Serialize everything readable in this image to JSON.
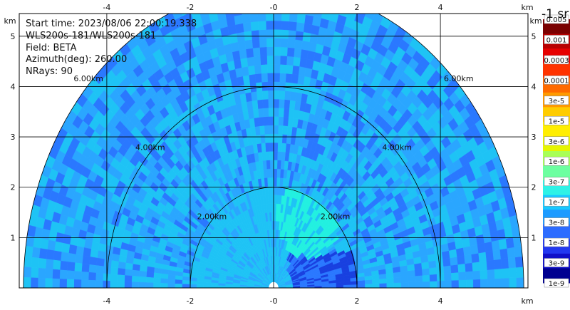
{
  "info": {
    "start_time": "Start time: 2023/08/06 22:00:19.338",
    "station": "WLS200s-181/WLS200s-181",
    "field": "Field: BETA",
    "azimuth": "Azimuth(deg): 260.00",
    "nrays": "NRays: 90"
  },
  "chart_data": {
    "type": "heatmap",
    "projection": "polar sector (PPI), upper half-plane",
    "x_unit": "km",
    "y_unit": "km",
    "xlim": [
      -6.1,
      6.1
    ],
    "ylim": [
      0,
      5.45
    ],
    "grid": true,
    "x_ticks": [
      "-4",
      "-2",
      "-0",
      "2",
      "4"
    ],
    "x_tick_values": [
      -4,
      -2,
      0,
      2,
      4
    ],
    "y_ticks": [
      "1",
      "2",
      "3",
      "4",
      "5"
    ],
    "y_tick_values": [
      1,
      2,
      3,
      4,
      5
    ],
    "range_rings_km": [
      2,
      4,
      6
    ],
    "range_ring_labels": [
      "2.00km",
      "4.00km",
      "6.00km"
    ],
    "colorbar": {
      "unit_label": "-1 sr",
      "labels": [
        "0.005",
        "0.001",
        "0.0003",
        "0.0001",
        "3e-5",
        "1e-5",
        "3e-6",
        "1e-6",
        "3e-7",
        "1e-7",
        "3e-8",
        "1e-8",
        "3e-9",
        "1e-9"
      ],
      "colors": [
        "#7a0000",
        "#b80000",
        "#e60000",
        "#ff3300",
        "#ff6a00",
        "#ff9a00",
        "#ffcc00",
        "#ffee00",
        "#e6f500",
        "#a8ff57",
        "#6cffa0",
        "#2ef2e6",
        "#18c8ff",
        "#1d9bff",
        "#2d6cff",
        "#2238f0",
        "#1010c8",
        "#000090"
      ]
    },
    "field_colors": {
      "near": "#1ec3f5",
      "core": "#22f0e0",
      "mid": "#2aa6ff",
      "far": "#2a78ff",
      "dark": "#1840e0"
    }
  }
}
